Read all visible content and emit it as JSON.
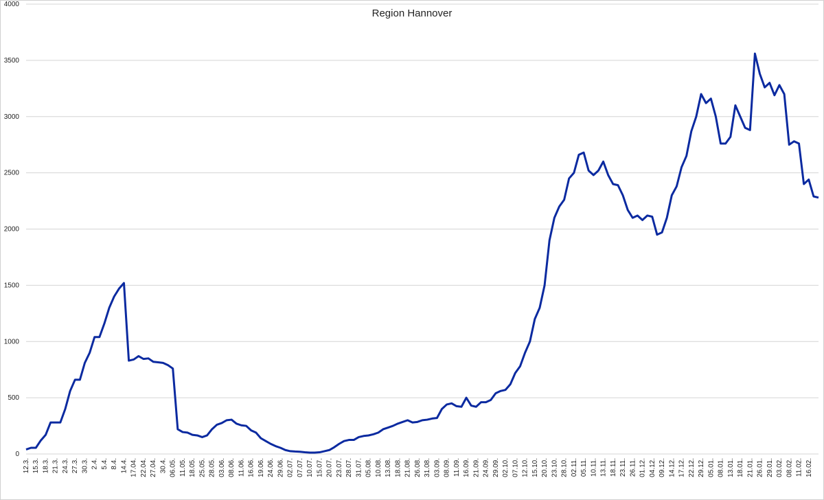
{
  "chart_data": {
    "type": "line",
    "title": "Region Hannover",
    "categories": [
      "12.3.",
      null,
      "15.3.",
      null,
      "18.3.",
      null,
      "21.3.",
      null,
      "24.3.",
      null,
      "27.3.",
      null,
      "30.3.",
      null,
      "2.4.",
      null,
      "5.4.",
      null,
      "8.4.",
      null,
      "14.4.",
      null,
      "17.04.",
      null,
      "22.04.",
      null,
      "27.04.",
      null,
      "30.4.",
      null,
      "06.05.",
      null,
      "11.05.",
      null,
      "18.05.",
      null,
      "25.05.",
      null,
      "28.05.",
      null,
      "03.06.",
      null,
      "08.06.",
      null,
      "11.06.",
      null,
      "16.06.",
      null,
      "19.06.",
      null,
      "24.06.",
      null,
      "29.06.",
      null,
      "02.07.",
      null,
      "07.07.",
      null,
      "10.07.",
      null,
      "15.07.",
      null,
      "20.07.",
      null,
      "23.07.",
      null,
      "28.07.",
      null,
      "31.07.",
      null,
      "05.08.",
      null,
      "10.08.",
      null,
      "13.08.",
      null,
      "18.08.",
      null,
      "21.08.",
      null,
      "26.08.",
      null,
      "31.08.",
      null,
      "03.09.",
      null,
      "08.09.",
      null,
      "11.09.",
      null,
      "16.09.",
      null,
      "21.09.",
      null,
      "24.09.",
      null,
      "29.09.",
      null,
      "02.10.",
      null,
      "07.10.",
      null,
      "12.10.",
      null,
      "15.10.",
      null,
      "20.10.",
      null,
      "23.10.",
      null,
      "28.10.",
      null,
      "02.11.",
      null,
      "05.11.",
      null,
      "10.11.",
      null,
      "13.11.",
      null,
      "18.11.",
      null,
      "23.11.",
      null,
      "26.11.",
      null,
      "01.12.",
      null,
      "04.12.",
      null,
      "09.12.",
      null,
      "14.12.",
      null,
      "17.12.",
      null,
      "22.12.",
      null,
      "29.12.",
      null,
      "05.01.",
      null,
      "08.01.",
      null,
      "13.01.",
      null,
      "18.01.",
      null,
      "21.01.",
      null,
      "26.01.",
      null,
      "29.01.",
      null,
      "03.02.",
      null,
      "08.02.",
      null,
      "11.02.",
      null,
      "16.02.",
      null,
      null
    ],
    "values": [
      40,
      55,
      55,
      120,
      170,
      280,
      280,
      280,
      400,
      560,
      660,
      660,
      810,
      900,
      1040,
      1040,
      1160,
      1300,
      1400,
      1470,
      1520,
      830,
      840,
      870,
      845,
      850,
      820,
      815,
      810,
      790,
      760,
      220,
      195,
      190,
      170,
      165,
      150,
      165,
      220,
      260,
      275,
      300,
      305,
      270,
      255,
      250,
      210,
      190,
      140,
      115,
      90,
      70,
      55,
      35,
      25,
      22,
      20,
      15,
      12,
      12,
      15,
      25,
      35,
      60,
      90,
      115,
      125,
      125,
      150,
      160,
      165,
      175,
      190,
      220,
      235,
      250,
      270,
      285,
      300,
      280,
      285,
      300,
      305,
      315,
      320,
      400,
      440,
      450,
      425,
      420,
      500,
      430,
      420,
      460,
      460,
      480,
      540,
      560,
      570,
      620,
      720,
      780,
      900,
      1000,
      1200,
      1300,
      1500,
      1900,
      2100,
      2200,
      2260,
      2450,
      2500,
      2660,
      2680,
      2520,
      2480,
      2520,
      2600,
      2480,
      2400,
      2390,
      2300,
      2170,
      2100,
      2120,
      2080,
      2120,
      2110,
      1950,
      1970,
      2100,
      2300,
      2380,
      2550,
      2650,
      2870,
      3000,
      3200,
      3120,
      3160,
      3000,
      2760,
      2760,
      2820,
      3100,
      3000,
      2900,
      2880,
      3560,
      3380,
      3260,
      3300,
      3190,
      3280,
      3200,
      2750,
      2780,
      2760,
      2400,
      2440,
      2290,
      2280
    ],
    "color": "#0b2aa0",
    "ylim": [
      0,
      4000
    ],
    "yticks": [
      0,
      500,
      1000,
      1500,
      2000,
      2500,
      3000,
      3500,
      4000
    ],
    "grid": true
  }
}
